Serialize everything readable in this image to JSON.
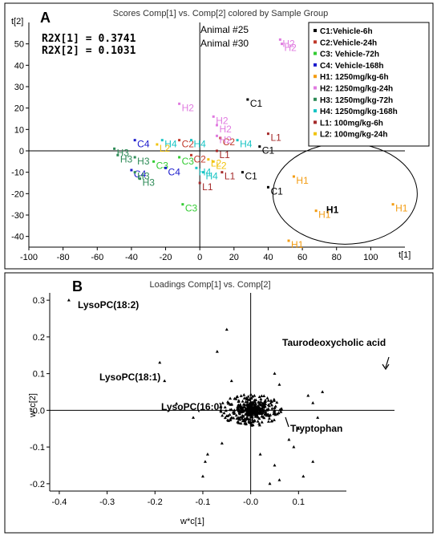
{
  "chart_data": [
    {
      "type": "scatter",
      "panel": "A",
      "title": "Scores Comp[1] vs. Comp[2] colored by Sample Group",
      "xlabel": "t[1]",
      "ylabel": "t[2]",
      "xlim": [
        -100,
        120
      ],
      "ylim": [
        -45,
        60
      ],
      "xticks": [
        -100,
        -80,
        -60,
        -40,
        -20,
        0,
        20,
        40,
        60,
        80,
        100
      ],
      "yticks": [
        -40,
        -30,
        -20,
        -10,
        0,
        10,
        20,
        30,
        40,
        50
      ],
      "stats": [
        "R2X[1] = 0.3741",
        "R2X[2] = 0.1031"
      ],
      "annotations": [
        "Animal #25",
        "Animal #30"
      ],
      "highlight_label": "H1",
      "legend": [
        {
          "label": "C1:Vehicle-6h",
          "color": "#000000"
        },
        {
          "label": "C2:Vehicle-24h",
          "color": "#c0392b"
        },
        {
          "label": "C3: Vehicle-72h",
          "color": "#33cc33"
        },
        {
          "label": "C4: Vehicle-168h",
          "color": "#1a1acc"
        },
        {
          "label": "H1: 1250mg/kg-6h",
          "color": "#f39c12"
        },
        {
          "label": "H2: 1250mg/kg-24h",
          "color": "#e07be0"
        },
        {
          "label": "H3: 1250mg/kg-72h",
          "color": "#2e8b57"
        },
        {
          "label": "H4: 1250mg/kg-168h",
          "color": "#17c4c4"
        },
        {
          "label": "L1: 100mg/kg-6h",
          "color": "#a52a2a"
        },
        {
          "label": "L2: 100mg/kg-24h",
          "color": "#f1c40f"
        }
      ],
      "points": [
        {
          "label": "C1",
          "x": 28,
          "y": 24
        },
        {
          "label": "C1",
          "x": 35,
          "y": 2
        },
        {
          "label": "C1",
          "x": 25,
          "y": -10
        },
        {
          "label": "C1",
          "x": 40,
          "y": -17
        },
        {
          "label": "C2",
          "x": -12,
          "y": 5
        },
        {
          "label": "C2",
          "x": -5,
          "y": -2
        },
        {
          "label": "C2",
          "x": 12,
          "y": 6
        },
        {
          "label": "C3",
          "x": -10,
          "y": -25
        },
        {
          "label": "C3",
          "x": -12,
          "y": -3
        },
        {
          "label": "C3",
          "x": -27,
          "y": -5
        },
        {
          "label": "C4",
          "x": -38,
          "y": 5
        },
        {
          "label": "C4",
          "x": -40,
          "y": -9
        },
        {
          "label": "C4",
          "x": -20,
          "y": -8
        },
        {
          "label": "H1",
          "x": 55,
          "y": -12
        },
        {
          "label": "H1",
          "x": 113,
          "y": -25
        },
        {
          "label": "H1",
          "x": 68,
          "y": -28
        },
        {
          "label": "H1",
          "x": 52,
          "y": -42
        },
        {
          "label": "H2",
          "x": -12,
          "y": 22
        },
        {
          "label": "H2",
          "x": 8,
          "y": 16
        },
        {
          "label": "H2",
          "x": 10,
          "y": 12
        },
        {
          "label": "H2",
          "x": 10,
          "y": 7
        },
        {
          "label": "H2",
          "x": 47,
          "y": 52
        },
        {
          "label": "H2",
          "x": 48,
          "y": 50
        },
        {
          "label": "H3",
          "x": -50,
          "y": 1
        },
        {
          "label": "H3",
          "x": -48,
          "y": -2
        },
        {
          "label": "H3",
          "x": -38,
          "y": -3
        },
        {
          "label": "H3",
          "x": -38,
          "y": -10
        },
        {
          "label": "H3",
          "x": -35,
          "y": -13
        },
        {
          "label": "H4",
          "x": -22,
          "y": 5
        },
        {
          "label": "H4",
          "x": -5,
          "y": 5
        },
        {
          "label": "H4",
          "x": 22,
          "y": 5
        },
        {
          "label": "H4",
          "x": -2,
          "y": -8
        },
        {
          "label": "H4",
          "x": 2,
          "y": -10
        },
        {
          "label": "L1",
          "x": 40,
          "y": 8
        },
        {
          "label": "L1",
          "x": 10,
          "y": 0
        },
        {
          "label": "L1",
          "x": 13,
          "y": -10
        },
        {
          "label": "L1",
          "x": 0,
          "y": -15
        },
        {
          "label": "L2",
          "x": -25,
          "y": 3
        },
        {
          "label": "L2",
          "x": 5,
          "y": -4
        },
        {
          "label": "L2",
          "x": 8,
          "y": -5
        }
      ]
    },
    {
      "type": "scatter",
      "panel": "B",
      "title": "Loadings Comp[1] vs. Comp[2]",
      "xlabel": "w*c[1]",
      "ylabel": "w*c[2]",
      "xlim": [
        -0.42,
        0.2
      ],
      "ylim": [
        -0.22,
        0.32
      ],
      "xticks": [
        -0.4,
        -0.3,
        -0.2,
        -0.1,
        0.0,
        0.1
      ],
      "yticks": [
        -0.2,
        -0.1,
        0.0,
        0.1,
        0.2,
        0.3
      ],
      "ytick_labels": [
        "-0.2",
        "-0.1",
        "-0.0",
        "0.1",
        "0.2",
        "0.3"
      ],
      "xtick_labels": [
        "-0.4",
        "-0.3",
        "-0.2",
        "-0.1",
        "-0.0",
        "0.1"
      ],
      "labels": [
        {
          "text": "LysoPC(18:2)"
        },
        {
          "text": "LysoPC(18:1)"
        },
        {
          "text": "LysoPC(16:0)"
        },
        {
          "text": "Taurodeoxycholic acid"
        },
        {
          "text": "Tryptophan"
        }
      ],
      "points": [
        {
          "x": -0.38,
          "y": 0.3
        },
        {
          "x": -0.19,
          "y": 0.13
        },
        {
          "x": -0.155,
          "y": 0.018
        },
        {
          "x": -0.12,
          "y": -0.02
        },
        {
          "x": -0.18,
          "y": 0.08
        },
        {
          "x": -0.05,
          "y": 0.22
        },
        {
          "x": -0.07,
          "y": 0.16
        },
        {
          "x": -0.09,
          "y": -0.12
        },
        {
          "x": -0.095,
          "y": -0.14
        },
        {
          "x": -0.1,
          "y": -0.18
        },
        {
          "x": -0.06,
          "y": -0.09
        },
        {
          "x": -0.04,
          "y": 0.08
        },
        {
          "x": 0.02,
          "y": -0.12
        },
        {
          "x": 0.05,
          "y": 0.1
        },
        {
          "x": 0.06,
          "y": 0.07
        },
        {
          "x": 0.09,
          "y": -0.1
        },
        {
          "x": 0.1,
          "y": -0.05
        },
        {
          "x": 0.11,
          "y": -0.18
        },
        {
          "x": 0.12,
          "y": 0.04
        },
        {
          "x": 0.13,
          "y": 0.02
        },
        {
          "x": 0.14,
          "y": -0.02
        },
        {
          "x": 0.15,
          "y": 0.05
        },
        {
          "x": 0.13,
          "y": -0.14
        },
        {
          "x": 0.08,
          "y": -0.08
        },
        {
          "x": 0.06,
          "y": -0.19
        },
        {
          "x": 0.05,
          "y": -0.15
        },
        {
          "x": 0.04,
          "y": -0.2
        }
      ]
    }
  ]
}
